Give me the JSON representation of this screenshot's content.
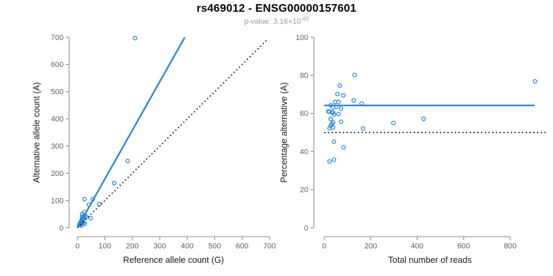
{
  "header": {
    "title": "rs469012 - ENSG00000157601",
    "subtitle_base": "p-value: 3.16×10",
    "subtitle_exponent": "-60"
  },
  "colors": {
    "accent_blue": "#2d87dc",
    "dotted_black": "#111111",
    "axis_line": "#8c8c8c",
    "tick_text": "#5f5f5f",
    "label_text": "#1a1a1a",
    "subtitle_gray": "#9b9b9b"
  },
  "chart_data": [
    {
      "type": "scatter",
      "panel": "left",
      "xlabel": "Reference allele count (G)",
      "ylabel": "Alternative allele count (A)",
      "xlim": [
        0,
        700
      ],
      "ylim": [
        0,
        700
      ],
      "xticks": [
        0,
        100,
        200,
        300,
        400,
        500,
        600,
        700
      ],
      "yticks": [
        0,
        100,
        200,
        300,
        400,
        500,
        600,
        700
      ],
      "grid": false,
      "point_style": "open-circle",
      "points": [
        [
          210,
          697
        ],
        [
          183,
          245
        ],
        [
          134,
          164
        ],
        [
          26,
          105
        ],
        [
          56,
          105
        ],
        [
          80,
          87
        ],
        [
          42,
          85
        ],
        [
          25,
          57
        ],
        [
          17,
          50
        ],
        [
          17,
          40
        ],
        [
          27,
          45
        ],
        [
          21,
          41
        ],
        [
          32,
          40
        ],
        [
          16,
          31
        ],
        [
          19,
          33
        ],
        [
          14,
          24
        ],
        [
          10,
          18
        ],
        [
          15,
          23
        ],
        [
          9,
          14
        ],
        [
          7,
          11
        ],
        [
          13,
          20
        ],
        [
          17,
          25
        ],
        [
          25,
          37
        ],
        [
          12,
          16
        ],
        [
          17,
          21
        ],
        [
          11,
          12
        ],
        [
          15,
          18
        ],
        [
          13,
          15
        ],
        [
          18,
          20
        ],
        [
          23,
          19
        ],
        [
          48,
          35
        ],
        [
          15,
          8
        ],
        [
          27,
          15
        ]
      ],
      "lines": [
        {
          "name": "regression-line",
          "style": "solid",
          "color": "#2d87dc",
          "width": 2.4,
          "x1": 0,
          "y1": 0,
          "x2": 391,
          "y2": 700
        },
        {
          "name": "identity-line",
          "style": "dotted",
          "color": "#111111",
          "width": 1.7,
          "x1": 0,
          "y1": 0,
          "x2": 692,
          "y2": 692
        }
      ]
    },
    {
      "type": "scatter",
      "panel": "right",
      "xlabel": "Total number of reads",
      "ylabel": "Percentage alternative (A)",
      "xlim": [
        0,
        910
      ],
      "ylim": [
        0,
        100
      ],
      "xticks": [
        0,
        200,
        400,
        600,
        800
      ],
      "yticks": [
        0,
        20,
        40,
        60,
        80,
        100
      ],
      "grid": false,
      "point_style": "open-circle",
      "points": [
        [
          907,
          76.8
        ],
        [
          428,
          57.2
        ],
        [
          298,
          55.0
        ],
        [
          131,
          80.2
        ],
        [
          67,
          74.6
        ],
        [
          57,
          70.2
        ],
        [
          82,
          69.5
        ],
        [
          127,
          66.9
        ],
        [
          161,
          65.2
        ],
        [
          47,
          66.0
        ],
        [
          62,
          66.1
        ],
        [
          38,
          63.2
        ],
        [
          52,
          63.5
        ],
        [
          28,
          64.3
        ],
        [
          72,
          62.5
        ],
        [
          38,
          60.5
        ],
        [
          23,
          60.9
        ],
        [
          18,
          61.1
        ],
        [
          33,
          60.6
        ],
        [
          42,
          59.5
        ],
        [
          62,
          59.7
        ],
        [
          28,
          57.1
        ],
        [
          72,
          55.6
        ],
        [
          38,
          55.3
        ],
        [
          23,
          52.2
        ],
        [
          33,
          54.5
        ],
        [
          28,
          53.6
        ],
        [
          38,
          52.6
        ],
        [
          167,
          52.1
        ],
        [
          42,
          45.2
        ],
        [
          83,
          42.2
        ],
        [
          23,
          34.8
        ],
        [
          42,
          35.7
        ]
      ],
      "lines": [
        {
          "name": "mean-percentage-line",
          "style": "solid",
          "color": "#2d87dc",
          "width": 2.4,
          "x1": 0,
          "y1": 64.2,
          "x2": 905,
          "y2": 64.2
        },
        {
          "name": "fifty-percent-line",
          "style": "dotted",
          "color": "#111111",
          "width": 1.7,
          "x1": 0,
          "y1": 50,
          "x2": 958,
          "y2": 50
        }
      ]
    }
  ]
}
